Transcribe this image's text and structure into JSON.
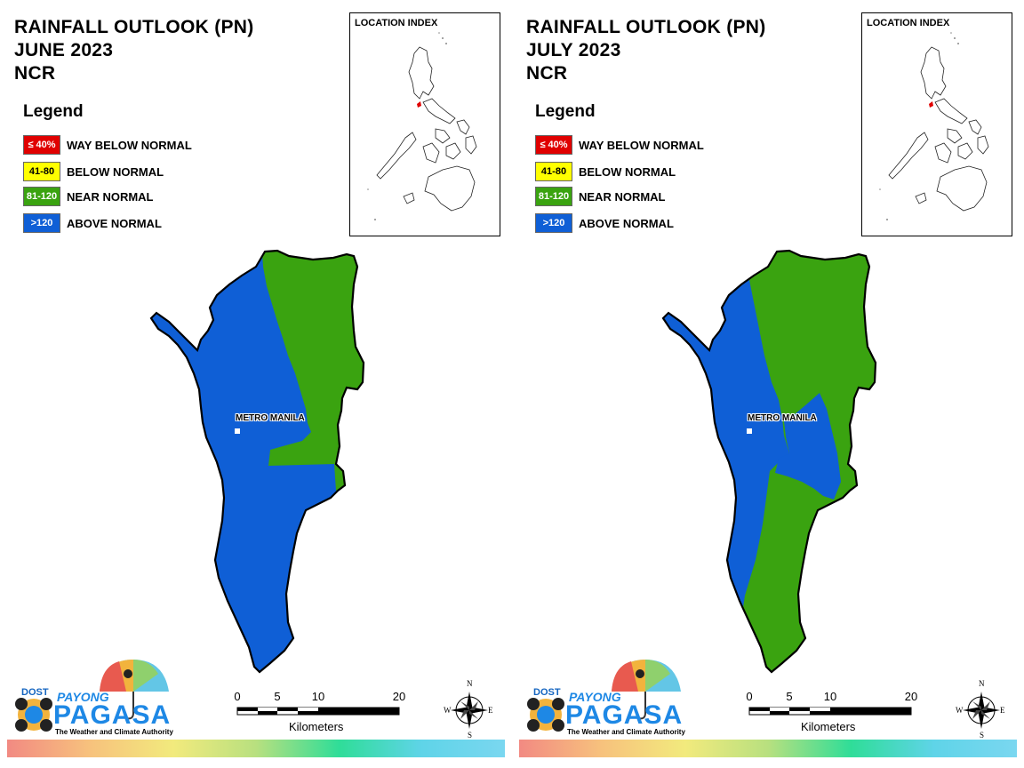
{
  "colors": {
    "way_below": "#e00000",
    "below": "#ffff00",
    "near": "#3aa310",
    "above": "#0f5fd6"
  },
  "legend": {
    "title": "Legend",
    "items": [
      {
        "range": "≤ 40%",
        "label": "WAY BELOW NORMAL",
        "color": "#e00000",
        "text_color": "#ffffff"
      },
      {
        "range": "41-80",
        "label": "BELOW NORMAL",
        "color": "#ffff00",
        "text_color": "#000000"
      },
      {
        "range": "81-120",
        "label": "NEAR NORMAL",
        "color": "#3aa310",
        "text_color": "#ffffff"
      },
      {
        "range": ">120",
        "label": "ABOVE NORMAL",
        "color": "#0f5fd6",
        "text_color": "#ffffff"
      }
    ]
  },
  "inset": {
    "title": "LOCATION INDEX"
  },
  "map_label": "METRO MANILA",
  "scale": {
    "ticks": [
      "0",
      "5",
      "10",
      "20"
    ],
    "units": "Kilometers"
  },
  "compass": {
    "n": "N",
    "s": "S",
    "e": "E",
    "w": "W"
  },
  "branding": {
    "dost": "DOST",
    "payong": "PAYONG",
    "pagasa": "PAGASA",
    "tagline": "The Weather and Climate Authority"
  },
  "panels": [
    {
      "title_line1": "RAINFALL OUTLOOK (PN)",
      "title_line2": "JUNE 2023",
      "title_line3": "NCR",
      "regions": [
        {
          "category": "above"
        },
        {
          "category": "near"
        }
      ]
    },
    {
      "title_line1": "RAINFALL OUTLOOK (PN)",
      "title_line2": "JULY 2023",
      "title_line3": "NCR",
      "regions": [
        {
          "category": "above"
        },
        {
          "category": "near"
        },
        {
          "category": "above"
        },
        {
          "category": "near"
        }
      ]
    }
  ]
}
